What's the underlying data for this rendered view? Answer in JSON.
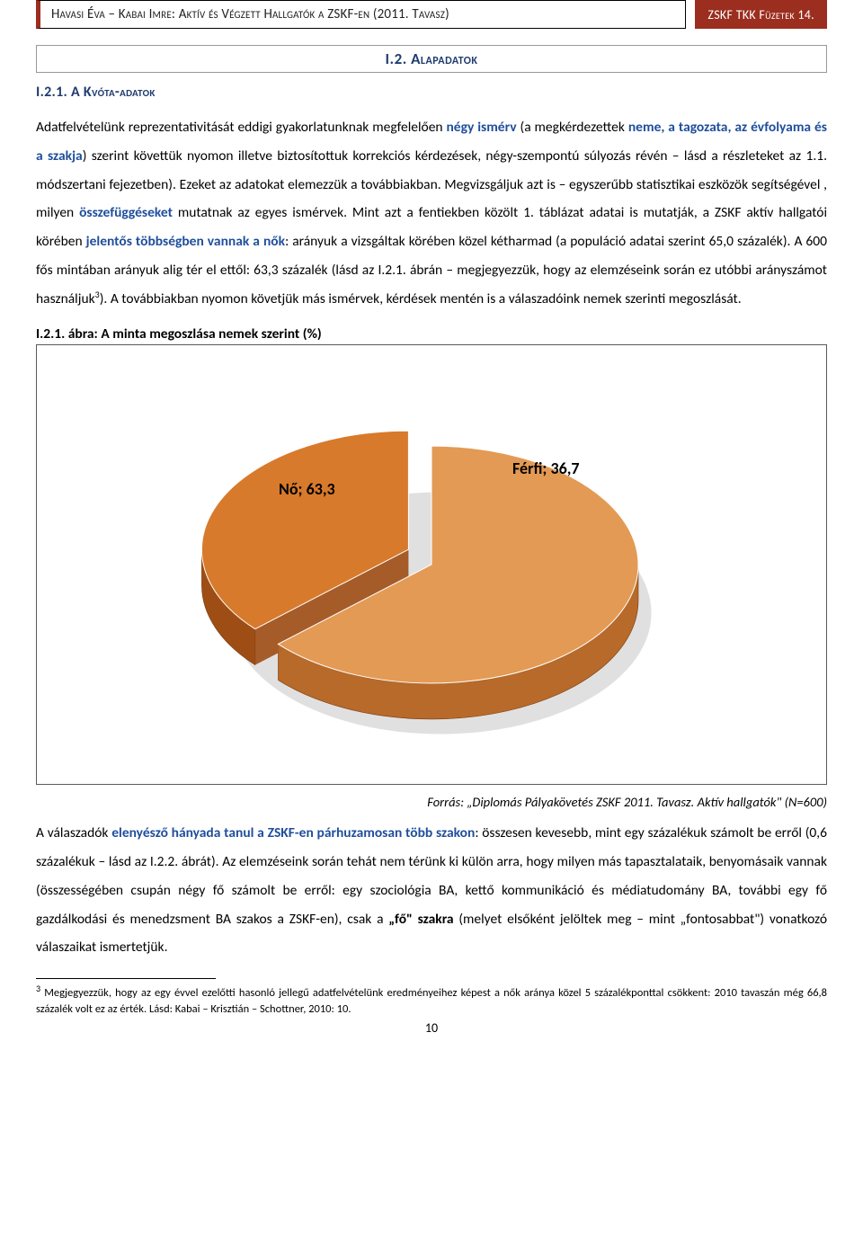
{
  "header": {
    "left": "Havasi Éva – Kabai Imre: Aktív és Végzett Hallgatók a ZSKF-en (2011. Tavasz)",
    "right": "ZSKF TKK Füzetek 14."
  },
  "section_title": "I.2. Alapadatok",
  "sub_title": "I.2.1. A Kvóta-adatok",
  "para1_a": "Adatfelvételünk reprezentativitását eddigi gyakorlatunknak megfelelően ",
  "para1_b": "négy ismérv",
  "para1_c": " (a megkérdezettek ",
  "para1_d": "neme, a tagozata, az évfolyama és a szakja",
  "para1_e": ") szerint követtük nyomon illetve biztosítottuk korrekciós kérdezések, négy-szempontú súlyozás révén – lásd a részleteket az 1.1. módszertani fejezetben). Ezeket az adatokat elemezzük a továbbiakban. Megvizsgáljuk azt is – egyszerűbb statisztikai eszközök segítségével , milyen ",
  "para1_f": "összefüggéseket",
  "para1_g": " mutatnak az egyes ismérvek. Mint azt a fentiekben közölt 1. táblázat adatai is mutatják, a ZSKF aktív hallgatói körében ",
  "para1_h": "jelentős többségben vannak a nők",
  "para1_i": ": arányuk a vizsgáltak körében közel kétharmad (a populáció adatai szerint 65,0 százalék). A 600 fős mintában arányuk alig tér el ettől: 63,3 százalék (lásd az I.2.1. ábrán – megjegyezzük, hogy az elemzéseink során ez utóbbi arányszámot használjuk",
  "para1_j": "). A továbbiakban nyomon követjük más ismérvek, kérdések mentén is a válaszadóink nemek szerinti megoszlását.",
  "chart_caption": "I.2.1. ábra: A minta megoszlása nemek szerint (%)",
  "chart": {
    "type": "pie",
    "slices": [
      {
        "label": "Nő; 63,3",
        "value": 63.3,
        "fill_top": "#e39a55",
        "fill_side": "#b76a2a",
        "exploded": false
      },
      {
        "label": "Férfi; 36,7",
        "value": 36.7,
        "fill_top": "#d87a2c",
        "fill_side": "#9e4e15",
        "exploded": true
      }
    ],
    "background": "#ffffff",
    "border_color": "#5a5a5a",
    "label_fontsize": 18,
    "label_fontweight": "bold",
    "depth": 40,
    "tilt_deg": 55
  },
  "chart_source": "Forrás: „Diplomás Pályakövetés ZSKF 2011. Tavasz. Aktív hallgatók\" (N=600)",
  "para2_a": "A válaszadók ",
  "para2_b": "elenyésző hányada tanul a ZSKF-en párhuzamosan több szakon",
  "para2_c": ": összesen kevesebb, mint egy százalékuk számolt be erről (0,6 százalékuk – lásd az I.2.2. ábrát). Az elemzéseink során tehát nem térünk ki külön arra, hogy milyen más tapasztalataik, benyomásaik vannak (összességében csupán négy fő számolt be erről: egy szociológia BA, kettő kommunikáció és médiatudomány BA, további egy fő gazdálkodási és menedzsment BA szakos a ZSKF-en), csak a ",
  "para2_d": "„fő\" szakra",
  "para2_e": " (melyet elsőként jelöltek meg – mint „fontosabbat\") vonatkozó válaszaikat ismertetjük.",
  "footnote_num": "3",
  "footnote": " Megjegyezzük, hogy az egy évvel ezelőtti hasonló jellegű adatfelvételünk eredményeihez képest a nők aránya közel 5 százalékponttal csökkent: 2010 tavaszán még 66,8 százalék volt ez az érték. Lásd: Kabai – Krisztián – Schottner, 2010: 10.",
  "page_number": "10"
}
